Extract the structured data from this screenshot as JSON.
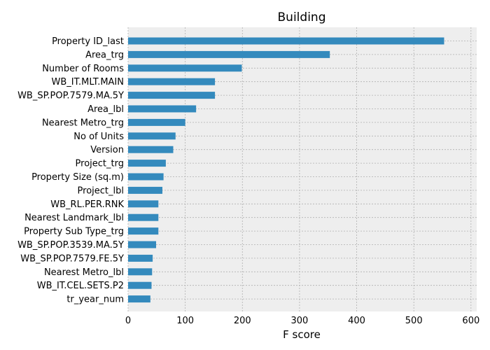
{
  "chart_data": {
    "type": "bar",
    "orientation": "horizontal",
    "title": "Building",
    "xlabel": "F score",
    "ylabel": "",
    "xlim": [
      0,
      610
    ],
    "xticks": [
      0,
      100,
      200,
      300,
      400,
      500,
      600
    ],
    "grid": true,
    "categories": [
      "Property ID_last",
      "Area_trg",
      "Number of Rooms",
      "WB_IT.MLT.MAIN",
      "WB_SP.POP.7579.MA.5Y",
      "Area_lbl",
      "Nearest Metro_trg",
      "No of Units",
      "Version",
      "Project_trg",
      "Property Size (sq.m)",
      "Project_lbl",
      "WB_RL.PER.RNK",
      "Nearest Landmark_lbl",
      "Property Sub Type_trg",
      "WB_SP.POP.3539.MA.5Y",
      "WB_SP.POP.7579.FE.5Y",
      "Nearest Metro_lbl",
      "WB_IT.CEL.SETS.P2",
      "tr_year_num"
    ],
    "values": [
      553,
      353,
      199,
      152,
      152,
      119,
      100,
      83,
      79,
      66,
      62,
      60,
      53,
      53,
      53,
      49,
      43,
      42,
      41,
      39
    ],
    "bar_color": "#348abd",
    "background_color": "#eeeeee",
    "grid_color": "#b0b0b0"
  }
}
